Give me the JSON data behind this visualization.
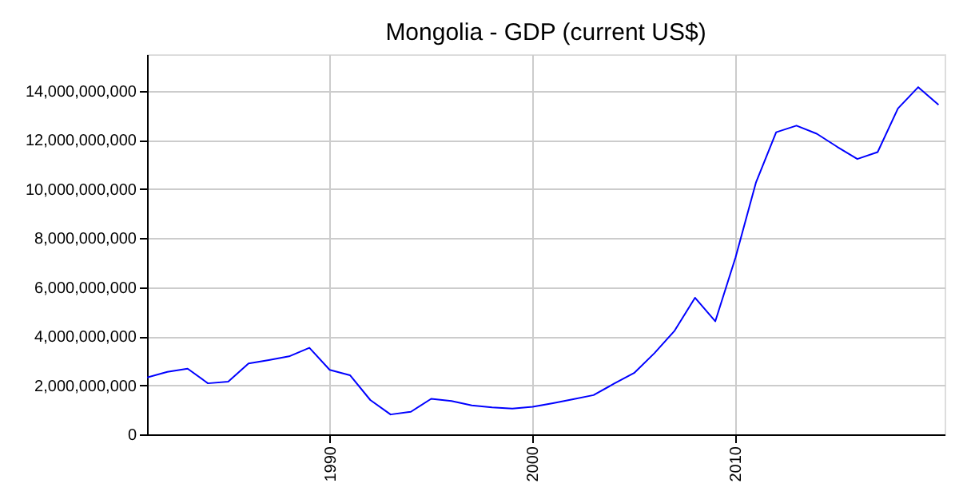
{
  "chart_data": {
    "type": "line",
    "title": "Mongolia - GDP (current US$)",
    "x": [
      1981,
      1982,
      1983,
      1984,
      1985,
      1986,
      1987,
      1988,
      1989,
      1990,
      1991,
      1992,
      1993,
      1994,
      1995,
      1996,
      1997,
      1998,
      1999,
      2000,
      2001,
      2002,
      2003,
      2004,
      2005,
      2006,
      2007,
      2008,
      2009,
      2010,
      2011,
      2012,
      2013,
      2014,
      2015,
      2016,
      2017,
      2018,
      2019,
      2020
    ],
    "series": [
      {
        "color": "#0000ff",
        "values": [
          2320000000,
          2550000000,
          2680000000,
          2080000000,
          2150000000,
          2890000000,
          3030000000,
          3180000000,
          3530000000,
          2630000000,
          2410000000,
          1400000000,
          810000000,
          920000000,
          1450000000,
          1360000000,
          1180000000,
          1100000000,
          1050000000,
          1120000000,
          1270000000,
          1430000000,
          1600000000,
          2060000000,
          2500000000,
          3310000000,
          4230000000,
          5570000000,
          4610000000,
          7220000000,
          10260000000,
          12320000000,
          12590000000,
          12260000000,
          11730000000,
          11230000000,
          11510000000,
          13290000000,
          14160000000,
          13440000000
        ]
      }
    ],
    "xlim": [
      1981,
      2020.3
    ],
    "xticks": [
      1990,
      2000,
      2010
    ],
    "ylim": [
      0,
      15500000000
    ],
    "yticks": [
      0,
      {
        "value": 2000000000,
        "label": "2,000,000,000"
      },
      {
        "value": 4000000000,
        "label": "4,000,000,000"
      },
      {
        "value": 6000000000,
        "label": "6,000,000,000"
      },
      {
        "value": 8000000000,
        "label": "8,000,000,000"
      },
      {
        "value": 10000000000,
        "label": "10,000,000,000"
      },
      {
        "value": 12000000000,
        "label": "12,000,000,000"
      },
      {
        "value": 14000000000,
        "label": "14,000,000,000"
      }
    ],
    "grid": true,
    "marker": "none",
    "line_style": "solid"
  }
}
